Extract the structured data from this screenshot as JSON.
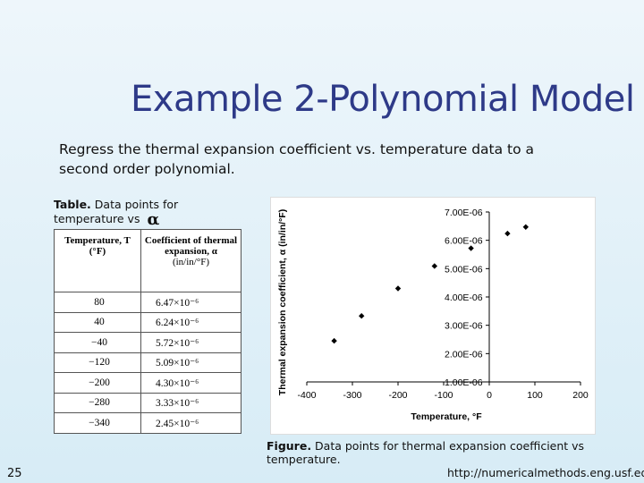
{
  "slide": {
    "title": "Example 2-Polynomial Model",
    "subtitle": "Regress the thermal expansion coefficient vs. temperature data to a second order polynomial.",
    "table_caption_bold": "Table.",
    "table_caption_text": "Data points for temperature vs",
    "table_caption_symbol": "α",
    "figure_caption_bold": "Figure.",
    "figure_caption_text": "Data points for thermal expansion coefficient vs temperature.",
    "page_number": "25",
    "url": "http://numericalmethods.eng.usf.edu"
  },
  "table": {
    "header_temp": "Temperature, T",
    "header_temp_unit": "(°F)",
    "header_coef": "Coefficient of thermal expansion, α",
    "header_coef_unit": "(in/in/°F)",
    "rows": [
      {
        "temp": "80",
        "coef": "6.47×10⁻⁶"
      },
      {
        "temp": "40",
        "coef": "6.24×10⁻⁶"
      },
      {
        "temp": "−40",
        "coef": "5.72×10⁻⁶"
      },
      {
        "temp": "−120",
        "coef": "5.09×10⁻⁶"
      },
      {
        "temp": "−200",
        "coef": "4.30×10⁻⁶"
      },
      {
        "temp": "−280",
        "coef": "3.33×10⁻⁶"
      },
      {
        "temp": "−340",
        "coef": "2.45×10⁻⁶"
      }
    ]
  },
  "chart_data": {
    "type": "scatter",
    "xlabel": "Temperature, °F",
    "ylabel": "Thermal expansion coefficient, α (in/in/°F)",
    "xlim": [
      -400,
      200
    ],
    "ylim": [
      1e-06,
      7e-06
    ],
    "x_ticks": [
      "-400",
      "-300",
      "-200",
      "-100",
      "0",
      "100",
      "200"
    ],
    "y_ticks": [
      "1.00E-06",
      "2.00E-06",
      "3.00E-06",
      "4.00E-06",
      "5.00E-06",
      "6.00E-06",
      "7.00E-06"
    ],
    "series": [
      {
        "x": [
          80,
          40,
          -40,
          -120,
          -200,
          -280,
          -340
        ],
        "y": [
          6.47e-06,
          6.24e-06,
          5.72e-06,
          5.09e-06,
          4.3e-06,
          3.33e-06,
          2.45e-06
        ]
      }
    ],
    "grid": false,
    "legend": "none",
    "marker": "diamond",
    "marker_color": "#000000"
  }
}
